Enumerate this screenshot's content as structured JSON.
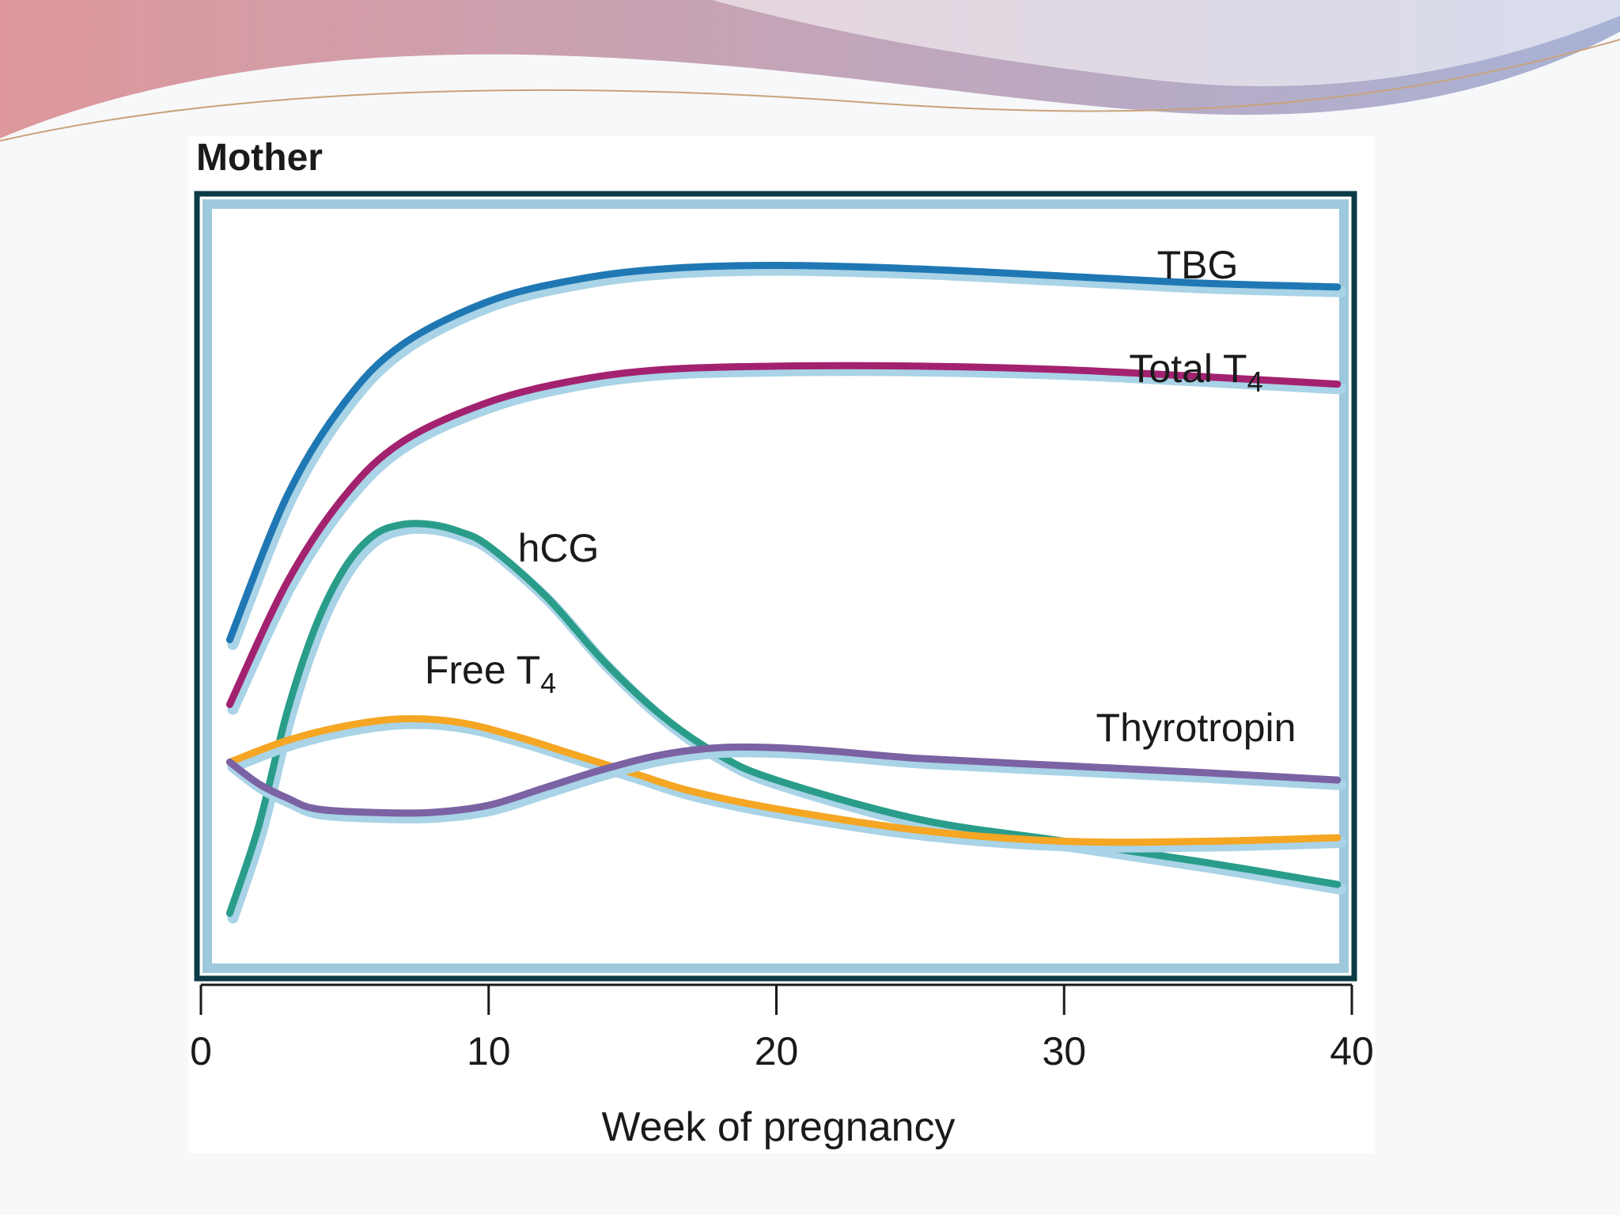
{
  "slide": {
    "accent_left": "#d9868a",
    "accent_right": "#9aa6cf",
    "banner_line": "#c9a27a"
  },
  "chart_data": {
    "type": "line",
    "title": "Mother",
    "xlabel": "Week of pregnancy",
    "ylabel": "",
    "xlim": [
      0,
      40
    ],
    "x_ticks": [
      "0",
      "10",
      "20",
      "30",
      "40"
    ],
    "ylim": [
      0,
      100
    ],
    "grid": false,
    "legend": "none (curves labeled directly)",
    "series": [
      {
        "name": "TBG",
        "color": "#1f78b4",
        "x": [
          1,
          3,
          5,
          7,
          10,
          13,
          16,
          20,
          25,
          30,
          35,
          39.5
        ],
        "y": [
          43,
          63,
          76,
          84,
          90,
          93,
          94.5,
          95,
          94.5,
          93.5,
          92.5,
          92
        ]
      },
      {
        "name": "Total T4",
        "color": "#a3226f",
        "x": [
          1,
          3,
          5,
          7,
          10,
          13,
          16,
          20,
          25,
          30,
          35,
          39.5
        ],
        "y": [
          34,
          51,
          63,
          70.5,
          76,
          79,
          80.5,
          81,
          81,
          80.5,
          79.5,
          78.5
        ]
      },
      {
        "name": "hCG",
        "color": "#2a9d8a",
        "x": [
          1,
          2,
          3,
          4,
          5,
          6,
          7,
          8,
          9,
          10,
          12,
          14,
          16,
          18,
          20,
          25,
          30,
          35,
          39.5
        ],
        "y": [
          5,
          17,
          33,
          45,
          53,
          57.5,
          59,
          59,
          58,
          56,
          49,
          40,
          32.5,
          27,
          23.5,
          18,
          15,
          12,
          9
        ]
      },
      {
        "name": "Free T4",
        "color": "#f5a623",
        "x": [
          1,
          3,
          5,
          7,
          9,
          11,
          13,
          15,
          17,
          20,
          25,
          30,
          35,
          39.5
        ],
        "y": [
          26,
          29,
          31,
          32,
          31.5,
          29.5,
          27,
          24.5,
          22,
          19.5,
          16.5,
          15,
          15,
          15.5
        ]
      },
      {
        "name": "Thyrotropin",
        "color": "#7b62a3",
        "x": [
          1,
          2,
          3,
          4,
          6,
          8,
          10,
          12,
          14,
          16,
          18,
          20,
          22,
          25,
          30,
          35,
          39.5
        ],
        "y": [
          26,
          23,
          21,
          19.5,
          19,
          19,
          20,
          22.5,
          25,
          27,
          28,
          28,
          27.5,
          26.5,
          25.5,
          24.5,
          23.5
        ]
      }
    ],
    "annotations": [
      {
        "series": "TBG",
        "text": "TBG"
      },
      {
        "series": "Total T4",
        "text": "Total T",
        "sub": "4"
      },
      {
        "series": "hCG",
        "text": "hCG"
      },
      {
        "series": "Free T4",
        "text": "Free T",
        "sub": "4"
      },
      {
        "series": "Thyrotropin",
        "text": "Thyrotropin"
      }
    ]
  }
}
